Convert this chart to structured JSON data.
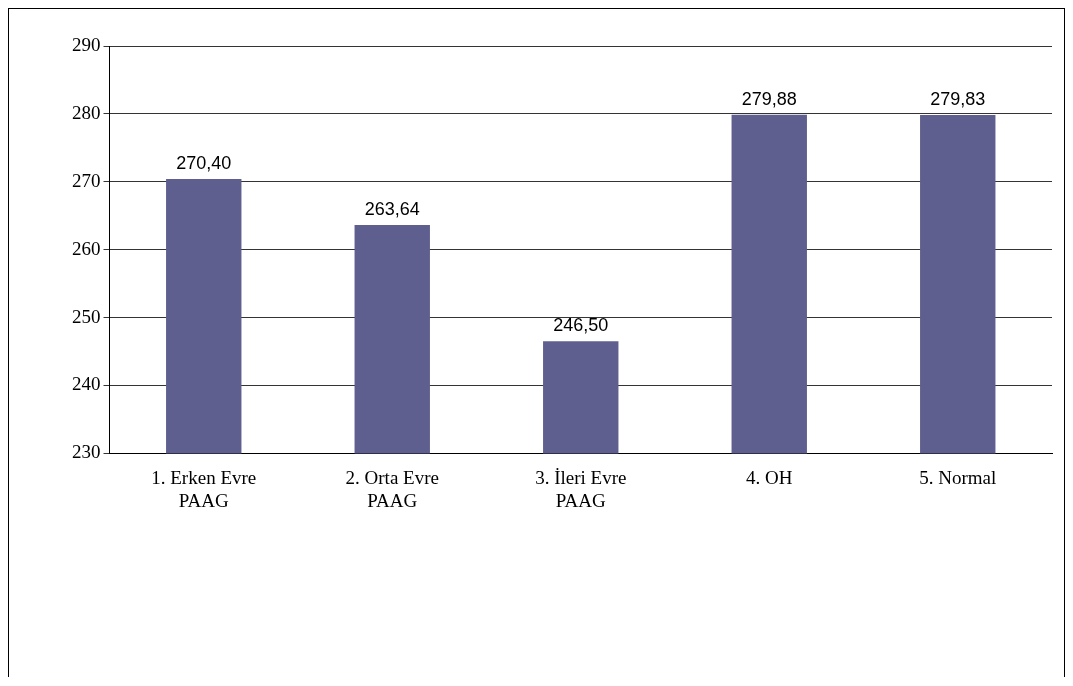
{
  "chart_data": {
    "type": "bar",
    "categories": [
      "1. Erken Evre\nPAAG",
      "2. Orta Evre\nPAAG",
      "3. İleri Evre\nPAAG",
      "4. OH",
      "5. Normal"
    ],
    "values": [
      270.4,
      263.64,
      246.5,
      279.88,
      279.83
    ],
    "value_labels": [
      "270,40",
      "263,64",
      "246,50",
      "279,88",
      "279,83"
    ],
    "color": "#5e5f8e",
    "ylim": [
      230,
      290
    ],
    "yticks": [
      230,
      240,
      250,
      260,
      270,
      280,
      290
    ],
    "grid": "y"
  }
}
